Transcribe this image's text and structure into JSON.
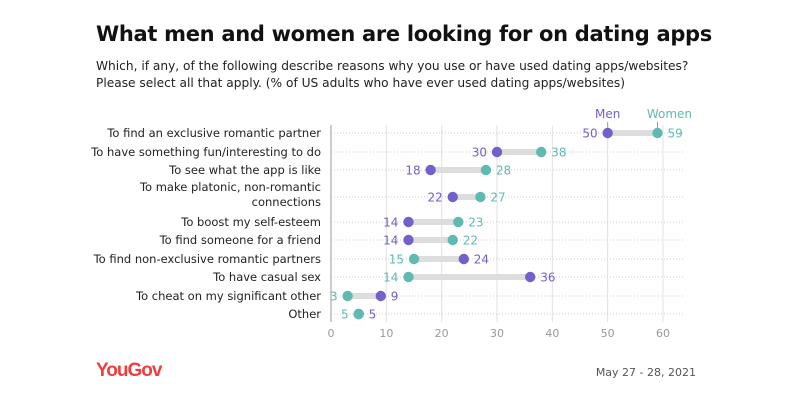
{
  "title": "What men and women are looking for on dating apps",
  "subtitle": "Which, if any, of the following describe reasons why you use or have used dating apps/websites? Please select all that apply. (% of US adults who have ever used dating apps/websites)",
  "footer": {
    "logo": "YouGov",
    "date": "May 27 - 28, 2021"
  },
  "chart_data": {
    "type": "dumbbell",
    "xlim": [
      0,
      65
    ],
    "xticks": [
      "0",
      "10",
      "20",
      "30",
      "40",
      "50",
      "60"
    ],
    "grid": true,
    "legend_placement": "top, annotating first row",
    "colors": {
      "Men": "#7361c9",
      "Women": "#5fbab2",
      "connector": "#dddddd"
    },
    "categories": [
      "To find an exclusive romantic partner",
      "To have something fun/interesting to do",
      "To see what the app is like",
      "To make platonic, non-romantic connections",
      "To boost my self-esteem",
      "To find someone for a friend",
      "To find non-exclusive romantic partners",
      "To have casual sex",
      "To cheat on my significant other",
      "Other"
    ],
    "series": [
      {
        "name": "Men",
        "values": [
          50,
          30,
          18,
          22,
          14,
          14,
          24,
          36,
          9,
          5
        ]
      },
      {
        "name": "Women",
        "values": [
          59,
          38,
          28,
          27,
          23,
          22,
          15,
          14,
          3,
          5
        ]
      }
    ]
  }
}
